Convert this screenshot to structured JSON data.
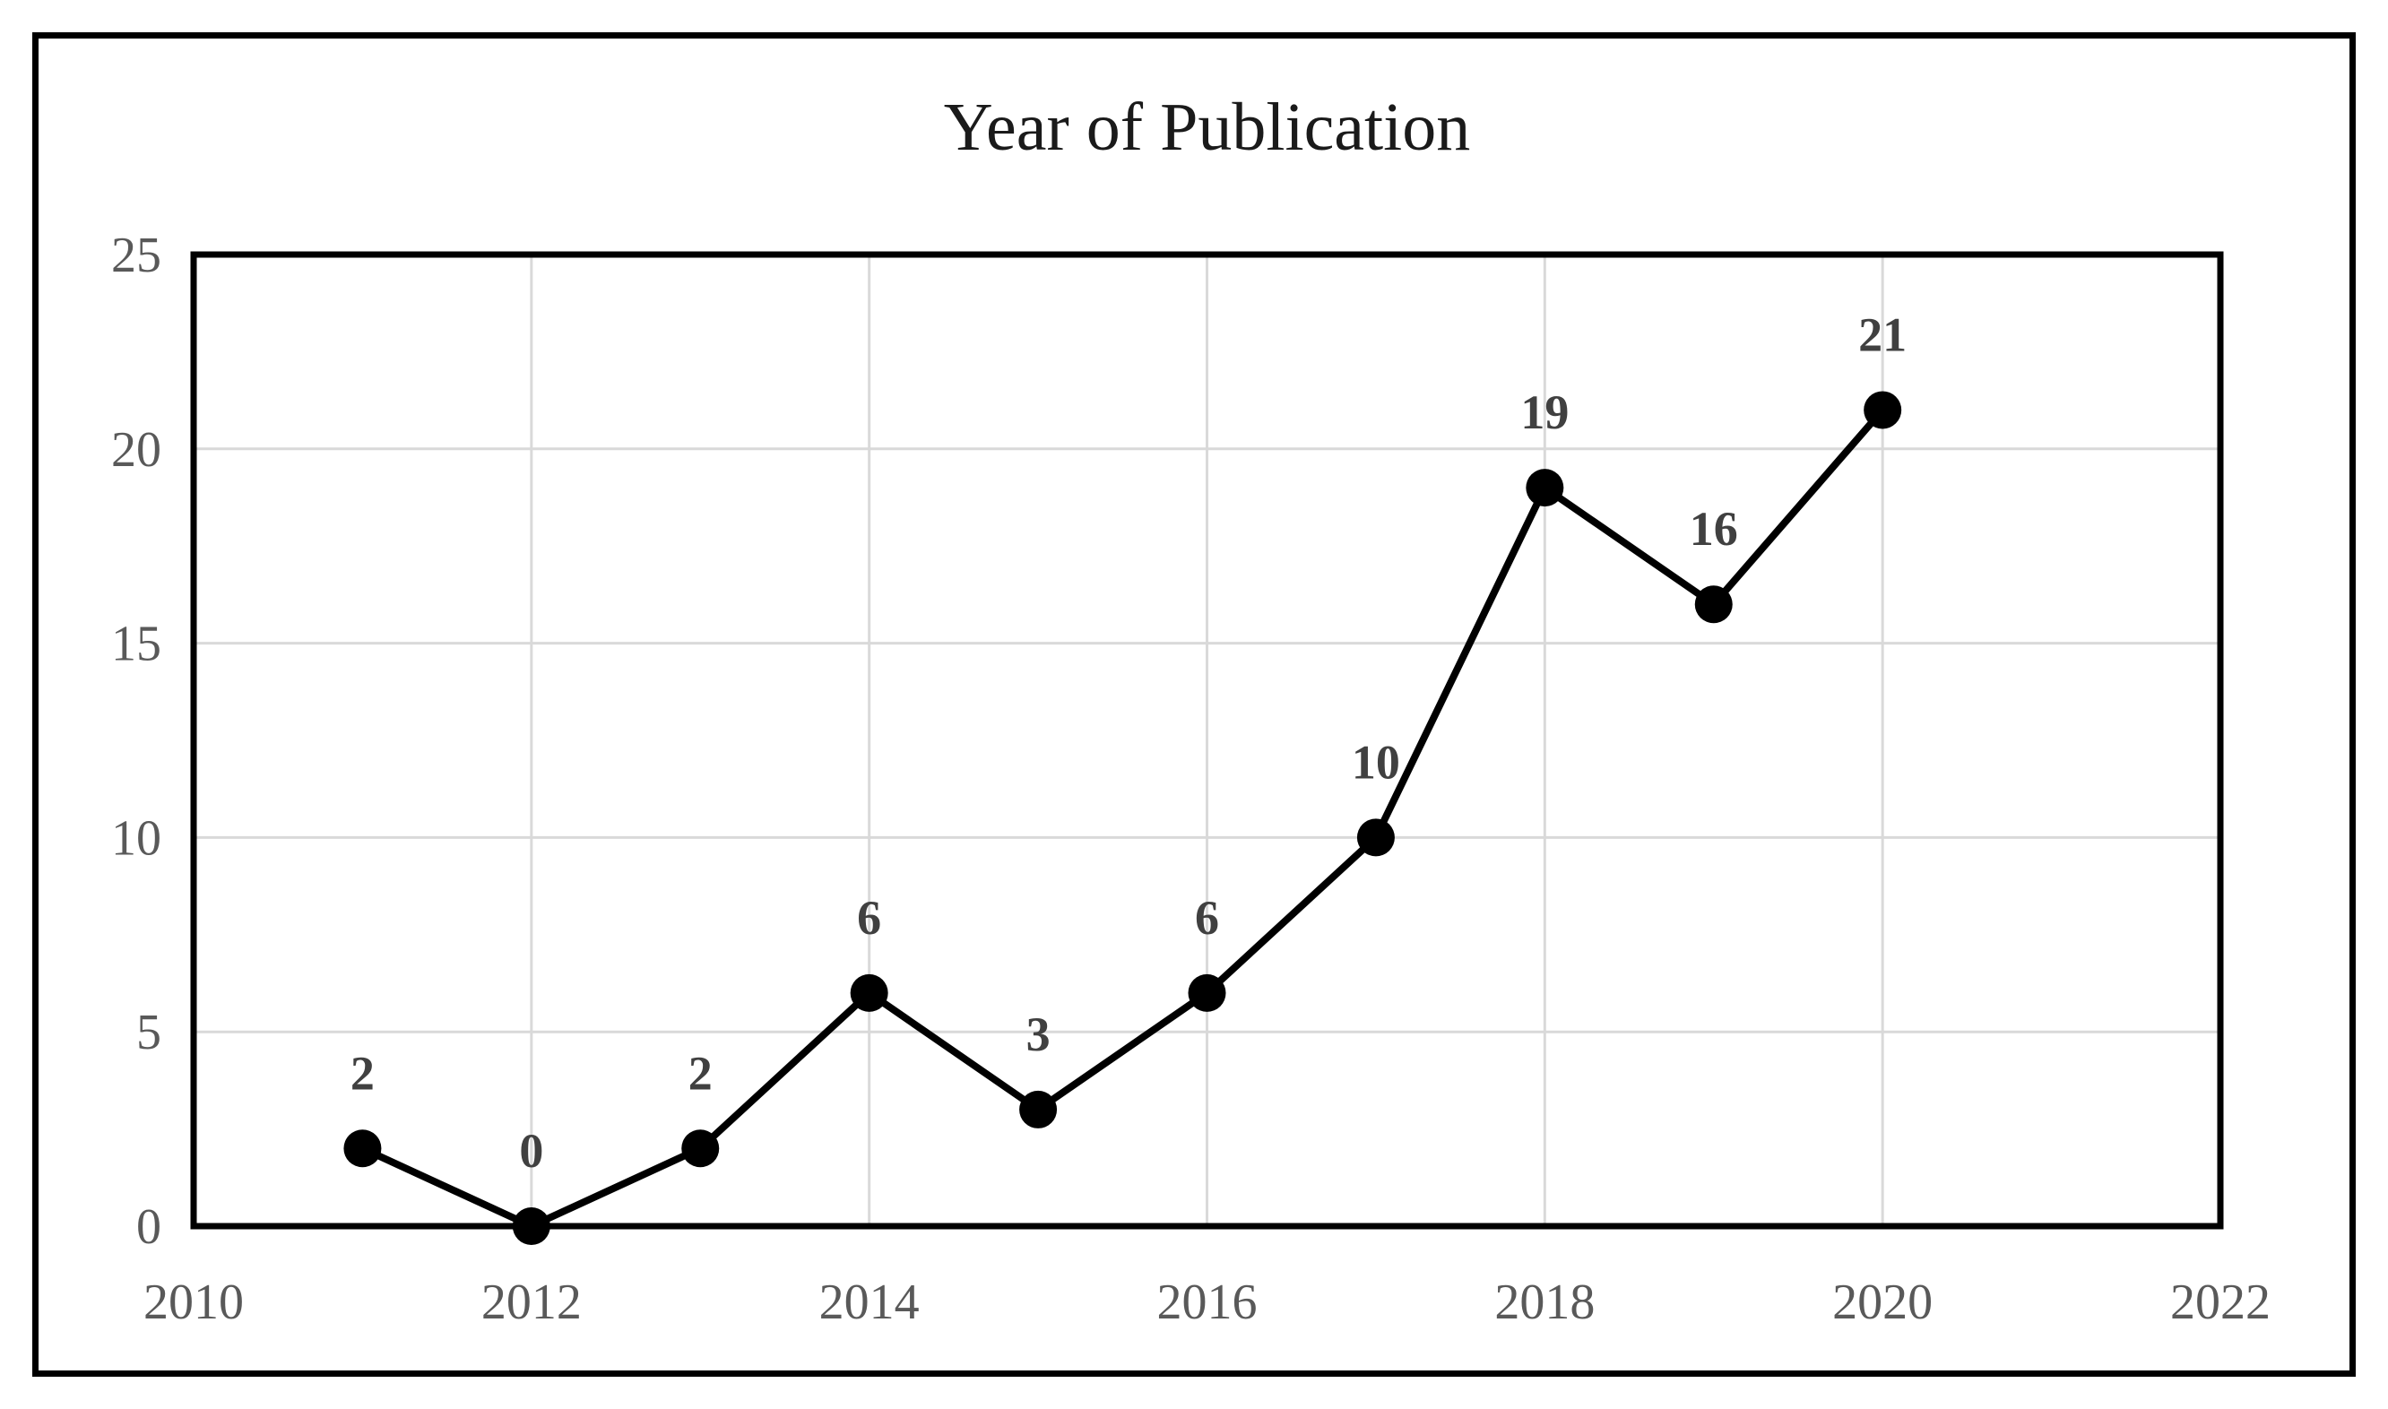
{
  "chart_data": {
    "type": "line",
    "title": "Year of Publication",
    "x": [
      2011,
      2012,
      2013,
      2014,
      2015,
      2016,
      2017,
      2018,
      2019,
      2020
    ],
    "values": [
      2,
      0,
      2,
      6,
      3,
      6,
      10,
      19,
      16,
      21
    ],
    "data_labels": [
      "2",
      "0",
      "2",
      "6",
      "3",
      "6",
      "10",
      "19",
      "16",
      "21"
    ],
    "xlim": [
      2010,
      2022
    ],
    "ylim": [
      0,
      25
    ],
    "x_ticks": [
      "2010",
      "2012",
      "2014",
      "2016",
      "2018",
      "2020",
      "2022"
    ],
    "y_ticks": [
      "0",
      "5",
      "10",
      "15",
      "20",
      "25"
    ],
    "grid": true,
    "legend": "none",
    "marker": "filled-circle",
    "colors": {
      "line": "#000000",
      "marker": "#000000",
      "gridline": "#d9d9d9",
      "plot_border": "#000000",
      "axis_label": "#595959",
      "data_label": "#404040",
      "title": "#1a1a1a",
      "frame_border": "#000000",
      "background": "#ffffff"
    }
  }
}
